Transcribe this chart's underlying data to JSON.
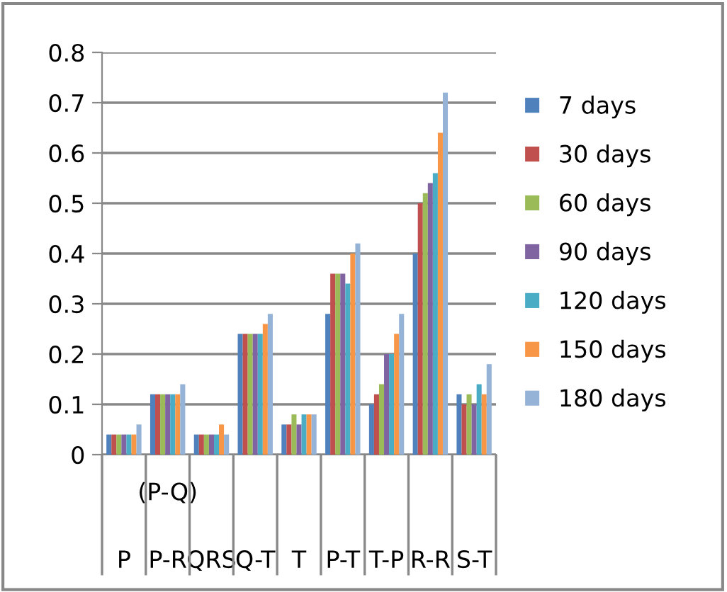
{
  "chart_data": {
    "type": "bar",
    "categories": [
      "P",
      "(P-Q)\nP-R",
      "QRS",
      "Q-T",
      "T",
      "P-T",
      "T-P",
      "R-R",
      "S-T"
    ],
    "series": [
      {
        "name": "7 days",
        "color": "#4f81bd",
        "values": [
          0.04,
          0.12,
          0.04,
          0.24,
          0.06,
          0.28,
          0.1,
          0.4,
          0.12
        ]
      },
      {
        "name": "30 days",
        "color": "#c0504d",
        "values": [
          0.04,
          0.12,
          0.04,
          0.24,
          0.06,
          0.36,
          0.12,
          0.5,
          0.1
        ]
      },
      {
        "name": "60 days",
        "color": "#9bbb59",
        "values": [
          0.04,
          0.12,
          0.04,
          0.24,
          0.08,
          0.36,
          0.14,
          0.52,
          0.12
        ]
      },
      {
        "name": "90 days",
        "color": "#8064a2",
        "values": [
          0.04,
          0.12,
          0.04,
          0.24,
          0.06,
          0.36,
          0.2,
          0.54,
          0.1
        ]
      },
      {
        "name": "120 days",
        "color": "#4bacc6",
        "values": [
          0.04,
          0.12,
          0.04,
          0.24,
          0.08,
          0.34,
          0.2,
          0.56,
          0.14
        ]
      },
      {
        "name": "150 days",
        "color": "#f79646",
        "values": [
          0.04,
          0.12,
          0.06,
          0.26,
          0.08,
          0.4,
          0.24,
          0.64,
          0.12
        ]
      },
      {
        "name": "180 days",
        "color": "#95b3d7",
        "values": [
          0.06,
          0.14,
          0.04,
          0.28,
          0.08,
          0.42,
          0.28,
          0.72,
          0.18
        ]
      }
    ],
    "ylim": [
      0,
      0.8
    ],
    "yticks": [
      0,
      0.1,
      0.2,
      0.3,
      0.4,
      0.5,
      0.6,
      0.7,
      0.8
    ],
    "grid": "y",
    "legend": "right"
  }
}
